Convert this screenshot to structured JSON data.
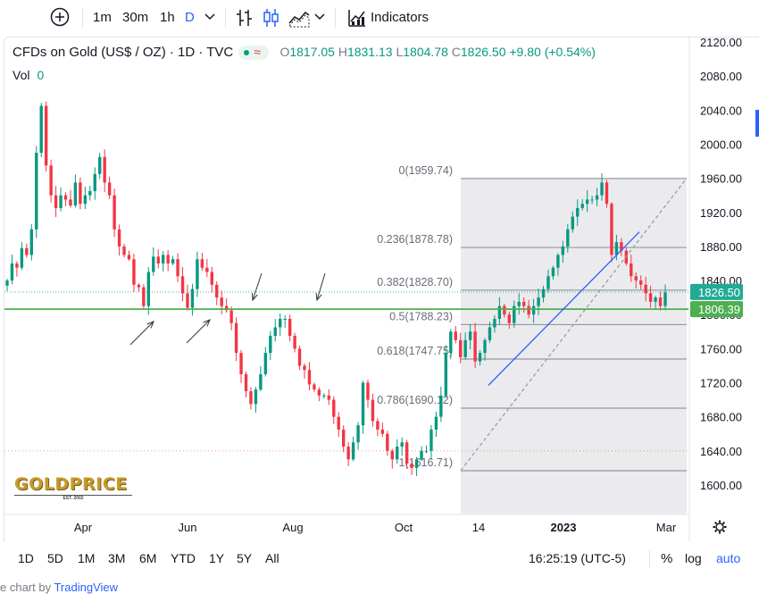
{
  "toolbar": {
    "intervals": [
      "1m",
      "30m",
      "1h",
      "D"
    ],
    "indicators_label": "Indicators"
  },
  "legend": {
    "title": "CFDs on Gold (US$ / OZ) · 1D · TVC",
    "o_key": "O",
    "o_val": "1817.05",
    "h_key": "H",
    "h_val": "1831.13",
    "l_key": "L",
    "l_val": "1804.78",
    "c_key": "C",
    "c_val": "1826.50",
    "change": "+9.80 (+0.54%)",
    "vol_label": "Vol",
    "vol_value": "0"
  },
  "logo": {
    "text": "GOLDPRICE",
    "sub": "EST. 2002"
  },
  "range_bar": {
    "ranges": [
      "1D",
      "5D",
      "1M",
      "3M",
      "6M",
      "YTD",
      "1Y",
      "5Y",
      "All"
    ],
    "time": "16:25:19 (UTC-5)",
    "percent": "%",
    "log": "log",
    "auto": "auto"
  },
  "footer": {
    "prefix": "e chart by ",
    "link": "TradingView"
  },
  "colors": {
    "up": "#089981",
    "down": "#f23645",
    "level_line": "#4caf50",
    "trend_line": "#2962ff",
    "price_label": "#22ab94"
  },
  "chart_data": {
    "type": "candlestick",
    "y_ticks": [
      1600,
      1640,
      1680,
      1720,
      1760,
      1800,
      1840,
      1880,
      1920,
      1960,
      2000,
      2040,
      2080,
      2120
    ],
    "y_tick_labels": [
      "1600.00",
      "1640.00",
      "1680.00",
      "1720.00",
      "1760.00",
      "1800.00",
      "1840.00",
      "1880.00",
      "1920.00",
      "1960.00",
      "2000.00",
      "2040.00",
      "2080.00",
      "2120.00"
    ],
    "x_tick_labels": [
      "Apr",
      "Jun",
      "Aug",
      "Oct",
      "14",
      "2023",
      "Mar"
    ],
    "last_price": 1826.5,
    "last_price_label": "1826.50",
    "horizontal_level": 1806.39,
    "horizontal_level_label": "1806.39",
    "fib_levels": [
      {
        "label": "0(1959.74)",
        "value": 1959.74
      },
      {
        "label": "0.236(1878.78)",
        "value": 1878.78
      },
      {
        "label": "0.382(1828.70)",
        "value": 1828.7
      },
      {
        "label": "0.5(1788.23)",
        "value": 1788.23
      },
      {
        "label": "0.618(1747.75)",
        "value": 1747.75
      },
      {
        "label": "0.786(1690.12)",
        "value": 1690.12
      },
      {
        "label": "1(1616.71)",
        "value": 1616.71
      }
    ],
    "trend_line": [
      1717,
      1897
    ],
    "dashed_diagonal": [
      1617,
      1960
    ],
    "highlight_level": 1640,
    "close_path": [
      1840,
      1860,
      1855,
      1878,
      1870,
      1900,
      1990,
      2045,
      1975,
      1940,
      1925,
      1940,
      1935,
      1928,
      1955,
      1930,
      1940,
      1945,
      1965,
      1985,
      1955,
      1940,
      1900,
      1880,
      1870,
      1865,
      1835,
      1832,
      1810,
      1850,
      1868,
      1860,
      1870,
      1860,
      1865,
      1845,
      1825,
      1808,
      1830,
      1865,
      1855,
      1850,
      1835,
      1820,
      1810,
      1805,
      1790,
      1755,
      1730,
      1710,
      1695,
      1712,
      1730,
      1755,
      1775,
      1785,
      1795,
      1795,
      1775,
      1760,
      1740,
      1735,
      1718,
      1712,
      1705,
      1705,
      1700,
      1680,
      1665,
      1645,
      1630,
      1650,
      1670,
      1720,
      1700,
      1675,
      1665,
      1660,
      1640,
      1630,
      1645,
      1650,
      1625,
      1620,
      1630,
      1640,
      1640,
      1665,
      1680,
      1705,
      1755,
      1780,
      1770,
      1750,
      1770,
      1780,
      1745,
      1755,
      1770,
      1785,
      1795,
      1810,
      1800,
      1790,
      1810,
      1815,
      1810,
      1800,
      1810,
      1820,
      1830,
      1845,
      1855,
      1870,
      1880,
      1900,
      1915,
      1925,
      1930,
      1935,
      1935,
      1940,
      1955,
      1930,
      1870,
      1885,
      1875,
      1860,
      1845,
      1840,
      1835,
      1825,
      1815,
      1820,
      1810,
      1826
    ]
  }
}
